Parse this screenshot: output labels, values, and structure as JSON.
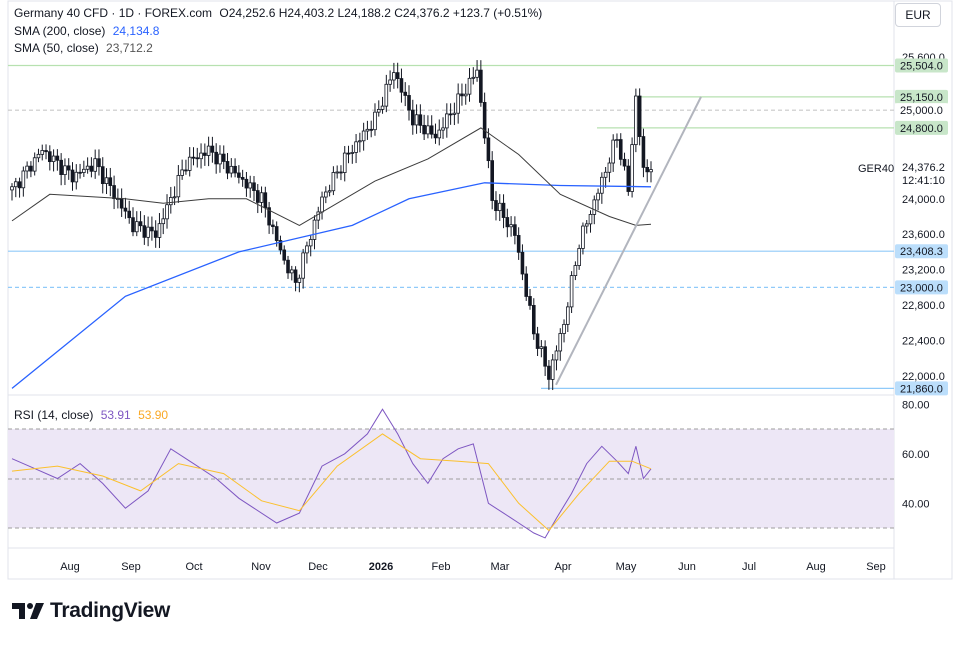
{
  "header": {
    "symbol": "Germany 40 CFD · 1D · FOREX.com",
    "ohlc": "O24,252.6  H24,403.2  L24,188.2  C24,376.2  +123.7 (+0.51%)",
    "sma200_label": "SMA (200, close)",
    "sma200_value": "24,134.8",
    "sma50_label": "SMA (50, close)",
    "sma50_value": "23,712.2",
    "currency": "EUR"
  },
  "rsi_header": {
    "label": "RSI (14, close)",
    "value1": "53.91",
    "value2": "53.90"
  },
  "price_axis": {
    "ticks": [
      "25,600.0",
      "24,000.0",
      "23,600.0",
      "23,200.0",
      "22,800.0",
      "22,400.0",
      "22,000.0"
    ],
    "level_labels": [
      "25,504.0",
      "25,150.0",
      "25,000.0",
      "24,800.0",
      "23,408.3",
      "23,000.0",
      "21,860.0"
    ],
    "symbol_tag": "GER40",
    "last_price": "24,376.2",
    "countdown": "12:41:10"
  },
  "rsi_axis": {
    "ticks": [
      "80.00",
      "60.00",
      "40.00"
    ]
  },
  "time_axis": [
    "Aug",
    "Sep",
    "Oct",
    "Nov",
    "Dec",
    "2026",
    "Feb",
    "Mar",
    "Apr",
    "May",
    "Jun",
    "Jul",
    "Aug",
    "Sep"
  ],
  "branding": {
    "name": "TradingView"
  },
  "colors": {
    "candle": "#131722",
    "sma200": "#2962ff",
    "sma50": "#3c3c3c",
    "rsi": "#7e57c2",
    "rsi_ma": "#fbc02d",
    "rsi_band": "#ede7f6",
    "level_green": "#b7e1b0",
    "level_blue": "#90caf9"
  },
  "chart_data": {
    "type": "candlestick",
    "title": "Germany 40 CFD · 1D · FOREX.com",
    "y_range": [
      21860,
      25700
    ],
    "horizontal_levels": [
      {
        "value": 25504.0,
        "style": "solid",
        "color": "green"
      },
      {
        "value": 25150.0,
        "style": "solid",
        "color": "green"
      },
      {
        "value": 25000.0,
        "style": "dashed",
        "color": "gray"
      },
      {
        "value": 24800.0,
        "style": "solid",
        "color": "green"
      },
      {
        "value": 23408.3,
        "style": "solid",
        "color": "blue"
      },
      {
        "value": 23000.0,
        "style": "dashed",
        "color": "blue"
      },
      {
        "value": 21860.0,
        "style": "solid",
        "color": "blue"
      }
    ],
    "trendline": {
      "from": {
        "time": "late Mar 2026",
        "price": 21900
      },
      "to": {
        "time": "early Jun 2026",
        "price": 25150
      }
    },
    "close_path_points": [
      {
        "t": 0,
        "close": 24100
      },
      {
        "t": 8,
        "close": 24550
      },
      {
        "t": 16,
        "close": 24250
      },
      {
        "t": 22,
        "close": 24400
      },
      {
        "t": 32,
        "close": 23700
      },
      {
        "t": 38,
        "close": 23600
      },
      {
        "t": 46,
        "close": 24400
      },
      {
        "t": 52,
        "close": 24550
      },
      {
        "t": 60,
        "close": 24250
      },
      {
        "t": 66,
        "close": 24000
      },
      {
        "t": 72,
        "close": 23300
      },
      {
        "t": 75,
        "close": 23050
      },
      {
        "t": 82,
        "close": 24000
      },
      {
        "t": 88,
        "close": 24450
      },
      {
        "t": 96,
        "close": 24900
      },
      {
        "t": 101,
        "close": 25450
      },
      {
        "t": 106,
        "close": 24900
      },
      {
        "t": 112,
        "close": 24700
      },
      {
        "t": 118,
        "close": 25100
      },
      {
        "t": 123,
        "close": 25450
      },
      {
        "t": 127,
        "close": 24000
      },
      {
        "t": 133,
        "close": 23600
      },
      {
        "t": 138,
        "close": 22500
      },
      {
        "t": 142,
        "close": 22000
      },
      {
        "t": 146,
        "close": 22600
      },
      {
        "t": 150,
        "close": 23500
      },
      {
        "t": 156,
        "close": 24200
      },
      {
        "t": 160,
        "close": 24700
      },
      {
        "t": 163,
        "close": 24100
      },
      {
        "t": 165,
        "close": 25150
      },
      {
        "t": 167,
        "close": 24300
      },
      {
        "t": 169,
        "close": 24376.2
      }
    ],
    "sma200_points": [
      {
        "t": 0,
        "v": 21860
      },
      {
        "t": 30,
        "v": 22900
      },
      {
        "t": 60,
        "v": 23400
      },
      {
        "t": 90,
        "v": 23700
      },
      {
        "t": 105,
        "v": 24000
      },
      {
        "t": 125,
        "v": 24180
      },
      {
        "t": 145,
        "v": 24150
      },
      {
        "t": 169,
        "v": 24134.8
      }
    ],
    "sma50_points": [
      {
        "t": 0,
        "v": 23750
      },
      {
        "t": 10,
        "v": 24050
      },
      {
        "t": 30,
        "v": 24000
      },
      {
        "t": 40,
        "v": 23950
      },
      {
        "t": 52,
        "v": 24000
      },
      {
        "t": 62,
        "v": 24000
      },
      {
        "t": 76,
        "v": 23700
      },
      {
        "t": 96,
        "v": 24200
      },
      {
        "t": 110,
        "v": 24450
      },
      {
        "t": 124,
        "v": 24800
      },
      {
        "t": 134,
        "v": 24500
      },
      {
        "t": 145,
        "v": 24050
      },
      {
        "t": 158,
        "v": 23800
      },
      {
        "t": 165,
        "v": 23700
      },
      {
        "t": 169,
        "v": 23712.2
      }
    ],
    "rsi": {
      "bands": [
        70,
        50,
        30
      ],
      "y_range": [
        25,
        80
      ],
      "rsi_points": [
        {
          "t": 0,
          "v": 58
        },
        {
          "t": 6,
          "v": 54
        },
        {
          "t": 12,
          "v": 50
        },
        {
          "t": 18,
          "v": 56
        },
        {
          "t": 24,
          "v": 48
        },
        {
          "t": 30,
          "v": 38
        },
        {
          "t": 36,
          "v": 45
        },
        {
          "t": 42,
          "v": 62
        },
        {
          "t": 48,
          "v": 56
        },
        {
          "t": 54,
          "v": 50
        },
        {
          "t": 60,
          "v": 42
        },
        {
          "t": 64,
          "v": 38
        },
        {
          "t": 70,
          "v": 32
        },
        {
          "t": 76,
          "v": 36
        },
        {
          "t": 82,
          "v": 55
        },
        {
          "t": 88,
          "v": 60
        },
        {
          "t": 94,
          "v": 68
        },
        {
          "t": 98,
          "v": 78
        },
        {
          "t": 102,
          "v": 68
        },
        {
          "t": 106,
          "v": 56
        },
        {
          "t": 110,
          "v": 48
        },
        {
          "t": 114,
          "v": 58
        },
        {
          "t": 118,
          "v": 62
        },
        {
          "t": 122,
          "v": 64
        },
        {
          "t": 126,
          "v": 40
        },
        {
          "t": 130,
          "v": 36
        },
        {
          "t": 134,
          "v": 32
        },
        {
          "t": 138,
          "v": 28
        },
        {
          "t": 141,
          "v": 26
        },
        {
          "t": 144,
          "v": 34
        },
        {
          "t": 148,
          "v": 44
        },
        {
          "t": 152,
          "v": 56
        },
        {
          "t": 156,
          "v": 63
        },
        {
          "t": 160,
          "v": 57
        },
        {
          "t": 163,
          "v": 52
        },
        {
          "t": 165,
          "v": 63
        },
        {
          "t": 167,
          "v": 50
        },
        {
          "t": 169,
          "v": 53.91
        }
      ],
      "rsi_ma_points": [
        {
          "t": 0,
          "v": 53
        },
        {
          "t": 12,
          "v": 55
        },
        {
          "t": 24,
          "v": 51
        },
        {
          "t": 34,
          "v": 45
        },
        {
          "t": 44,
          "v": 56
        },
        {
          "t": 56,
          "v": 52
        },
        {
          "t": 66,
          "v": 41
        },
        {
          "t": 76,
          "v": 37
        },
        {
          "t": 86,
          "v": 55
        },
        {
          "t": 98,
          "v": 68
        },
        {
          "t": 108,
          "v": 58
        },
        {
          "t": 118,
          "v": 57
        },
        {
          "t": 126,
          "v": 56
        },
        {
          "t": 134,
          "v": 40
        },
        {
          "t": 142,
          "v": 29
        },
        {
          "t": 150,
          "v": 44
        },
        {
          "t": 158,
          "v": 57
        },
        {
          "t": 164,
          "v": 57
        },
        {
          "t": 169,
          "v": 53.9
        }
      ]
    }
  }
}
